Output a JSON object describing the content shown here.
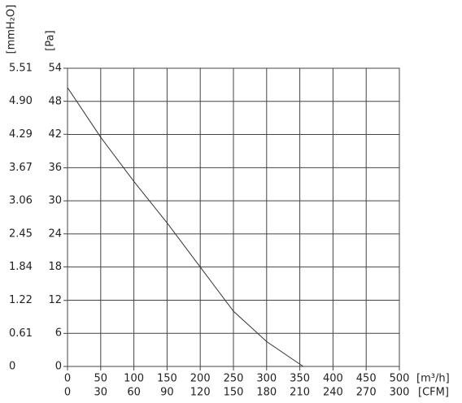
{
  "chart_data": {
    "type": "line",
    "y_label": "[Pa]",
    "y2_label": "[mmH₂O]",
    "x_label": "[m³/h]",
    "x2_label": "[CFM]",
    "x": [
      0,
      50,
      100,
      150,
      200,
      250,
      300,
      355
    ],
    "values": [
      50.5,
      41.5,
      33.5,
      26,
      18,
      10,
      4.5,
      0
    ],
    "color": "#333333",
    "xlim": [
      0,
      500
    ],
    "xticks": [
      0,
      50,
      100,
      150,
      200,
      250,
      300,
      350,
      400,
      450,
      500
    ],
    "x2lim": [
      0,
      300
    ],
    "x2ticks": [
      0,
      30,
      60,
      90,
      120,
      150,
      180,
      210,
      240,
      270,
      300
    ],
    "ylim": [
      0,
      54
    ],
    "yticks": [
      0,
      6,
      12,
      18,
      24,
      30,
      36,
      42,
      48,
      54
    ],
    "y2lim": [
      0,
      5.51
    ],
    "y2ticks": [
      0,
      0.61,
      1.22,
      1.84,
      2.45,
      3.06,
      3.67,
      4.29,
      {
        "value": 4.9,
        "label": "4.90"
      },
      5.51
    ],
    "grid": true
  }
}
